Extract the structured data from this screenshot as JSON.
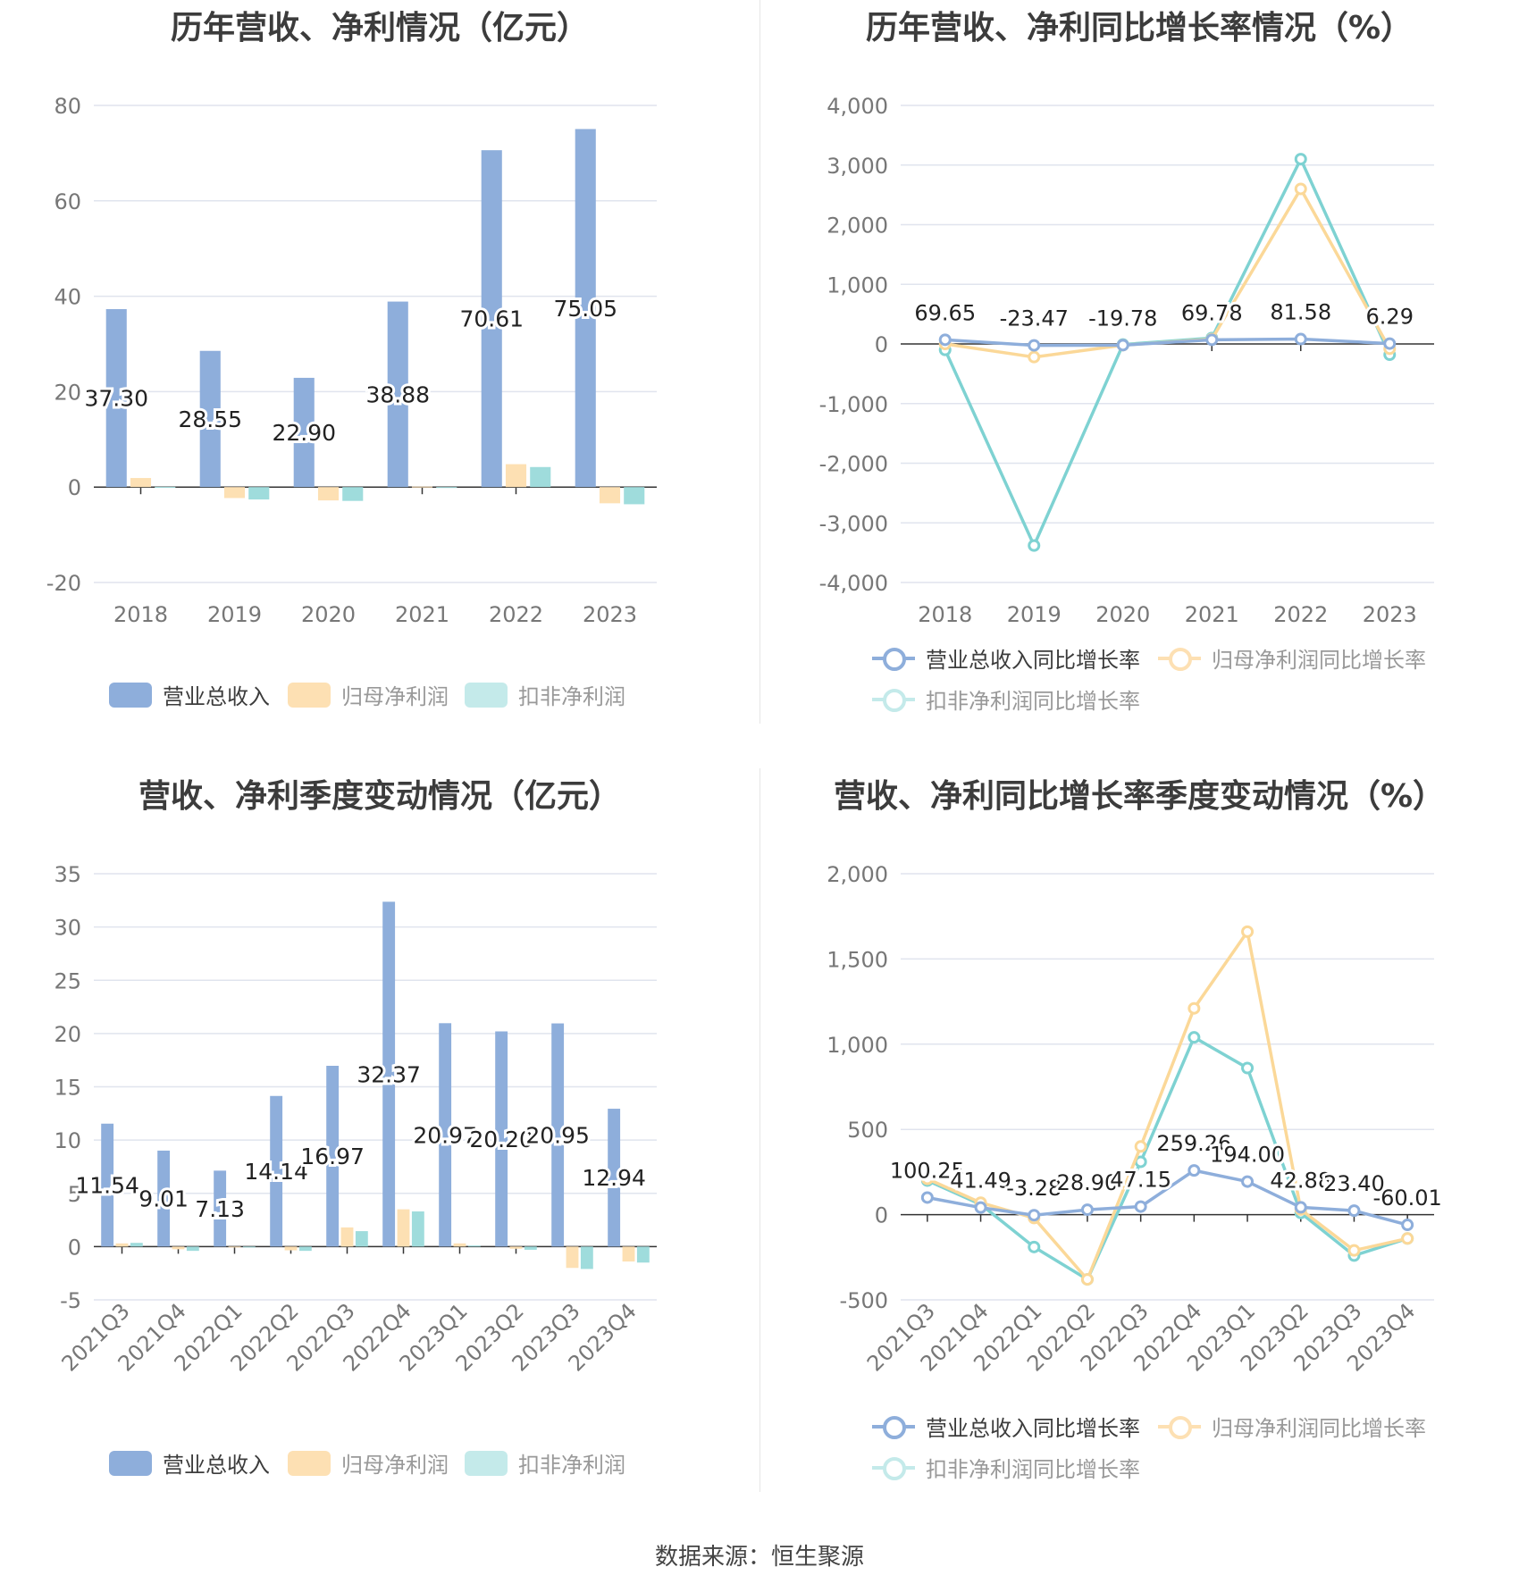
{
  "colors": {
    "revenue": "#8eaedb",
    "net_profit": "#fde0b3",
    "deducted_profit": "#9fdcdc",
    "revenue_line": "#8eaedb",
    "net_line": "#fbd898",
    "ded_line": "#7ed2d2"
  },
  "legend_bar": [
    "营业总收入",
    "归母净利润",
    "扣非净利润"
  ],
  "legend_line": [
    "营业总收入同比增长率",
    "归母净利润同比增长率",
    "扣非净利润同比增长率"
  ],
  "footer": "数据来源：恒生聚源",
  "chart_data": [
    {
      "id": "annual_amounts",
      "type": "bar",
      "title": "历年营收、净利情况（亿元）",
      "categories": [
        "2018",
        "2019",
        "2020",
        "2021",
        "2022",
        "2023"
      ],
      "ylim": [
        -20,
        80
      ],
      "yticks": [
        "80",
        "60",
        "40",
        "20",
        "0",
        "-20"
      ],
      "ytick_values": [
        80,
        60,
        40,
        20,
        0,
        -20
      ],
      "series": [
        {
          "name": "营业总收入",
          "values": [
            37.3,
            28.55,
            22.9,
            38.88,
            70.61,
            75.05
          ],
          "labels": [
            "37.30",
            "28.55",
            "22.90",
            "38.88",
            "70.61",
            "75.05"
          ]
        },
        {
          "name": "归母净利润",
          "values": [
            1.9,
            -2.3,
            -2.8,
            0.1,
            4.8,
            -3.4
          ]
        },
        {
          "name": "扣非净利润",
          "values": [
            0.05,
            -2.6,
            -2.9,
            -0.1,
            4.2,
            -3.6
          ]
        }
      ],
      "grid": true,
      "legend": "bottom"
    },
    {
      "id": "annual_growth",
      "type": "line",
      "title": "历年营收、净利同比增长率情况（%）",
      "categories": [
        "2018",
        "2019",
        "2020",
        "2021",
        "2022",
        "2023"
      ],
      "ylim": [
        -4000,
        4000
      ],
      "yticks": [
        "4,000",
        "3,000",
        "2,000",
        "1,000",
        "0",
        "-1,000",
        "-2,000",
        "-3,000",
        "-4,000"
      ],
      "ytick_values": [
        4000,
        3000,
        2000,
        1000,
        0,
        -1000,
        -2000,
        -3000,
        -4000
      ],
      "series": [
        {
          "name": "营业总收入同比增长率",
          "values": [
            69.65,
            -23.47,
            -19.78,
            69.78,
            81.58,
            6.29
          ],
          "labels": [
            "69.65",
            "-23.47",
            "-19.78",
            "69.78",
            "81.58",
            "6.29"
          ]
        },
        {
          "name": "归母净利润同比增长率",
          "values": [
            0,
            -220,
            -20,
            80,
            2600,
            -80
          ]
        },
        {
          "name": "扣非净利润同比增长率",
          "values": [
            -100,
            -3380,
            -10,
            100,
            3100,
            -180
          ]
        }
      ],
      "grid": true,
      "legend": "bottom"
    },
    {
      "id": "quarterly_amounts",
      "type": "bar",
      "title": "营收、净利季度变动情况（亿元）",
      "categories": [
        "2021Q3",
        "2021Q4",
        "2022Q1",
        "2022Q2",
        "2022Q3",
        "2022Q4",
        "2023Q1",
        "2023Q2",
        "2023Q3",
        "2023Q4"
      ],
      "ylim": [
        -5,
        35
      ],
      "yticks": [
        "35",
        "30",
        "25",
        "20",
        "15",
        "10",
        "5",
        "0",
        "-5"
      ],
      "ytick_values": [
        35,
        30,
        25,
        20,
        15,
        10,
        5,
        0,
        -5
      ],
      "series": [
        {
          "name": "营业总收入",
          "values": [
            11.54,
            9.01,
            7.13,
            14.14,
            16.97,
            32.37,
            20.97,
            20.2,
            20.95,
            12.94
          ],
          "labels": [
            "11.54",
            "9.01",
            "7.13",
            "14.14",
            "16.97",
            "32.37",
            "20.97",
            "20.20",
            "20.95",
            "12.94"
          ]
        },
        {
          "name": "归母净利润",
          "values": [
            0.3,
            -0.25,
            -0.05,
            -0.35,
            1.8,
            3.5,
            0.3,
            -0.2,
            -2.0,
            -1.4
          ]
        },
        {
          "name": "扣非净利润",
          "values": [
            0.35,
            -0.4,
            -0.05,
            -0.4,
            1.45,
            3.3,
            0.1,
            -0.3,
            -2.1,
            -1.5
          ]
        }
      ],
      "grid": true,
      "legend": "bottom"
    },
    {
      "id": "quarterly_growth",
      "type": "line",
      "title": "营收、净利同比增长率季度变动情况（%）",
      "categories": [
        "2021Q3",
        "2021Q4",
        "2022Q1",
        "2022Q2",
        "2022Q3",
        "2022Q4",
        "2023Q1",
        "2023Q2",
        "2023Q3",
        "2023Q4"
      ],
      "ylim": [
        -500,
        2000
      ],
      "yticks": [
        "2,000",
        "1,500",
        "1,000",
        "500",
        "0",
        "-500"
      ],
      "ytick_values": [
        2000,
        1500,
        1000,
        500,
        0,
        -500
      ],
      "series": [
        {
          "name": "营业总收入同比增长率",
          "values": [
            100.25,
            41.49,
            -3.28,
            28.9,
            47.15,
            259.26,
            194.0,
            42.88,
            23.4,
            -60.01
          ],
          "labels": [
            "100.25",
            "41.49",
            "-3.28",
            "28.90",
            "47.15",
            "259.26",
            "194.00",
            "42.88",
            "23.40",
            "-60.01"
          ]
        },
        {
          "name": "归母净利润同比增长率",
          "values": [
            210,
            70,
            -20,
            -380,
            400,
            1210,
            1660,
            30,
            -210,
            -140
          ]
        },
        {
          "name": "扣非净利润同比增长率",
          "values": [
            200,
            60,
            -190,
            -380,
            310,
            1040,
            860,
            10,
            -240,
            -140
          ]
        }
      ],
      "grid": true,
      "legend": "bottom"
    }
  ]
}
